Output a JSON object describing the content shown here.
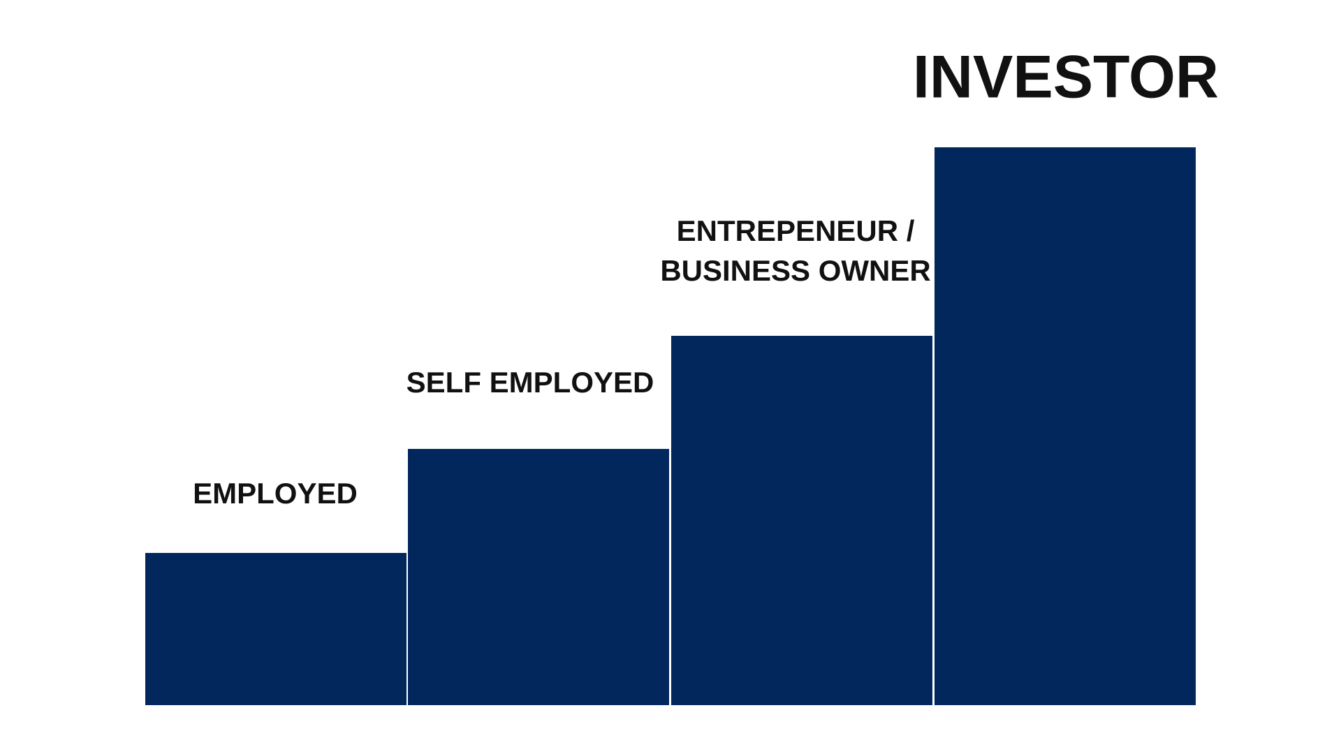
{
  "steps": [
    {
      "label": [
        "EMPLOYED"
      ]
    },
    {
      "label": [
        "SELF EMPLOYED"
      ]
    },
    {
      "label": [
        "ENTREPENEUR /",
        "BUSINESS OWNER"
      ]
    },
    {
      "label": [
        "INVESTOR"
      ]
    }
  ]
}
